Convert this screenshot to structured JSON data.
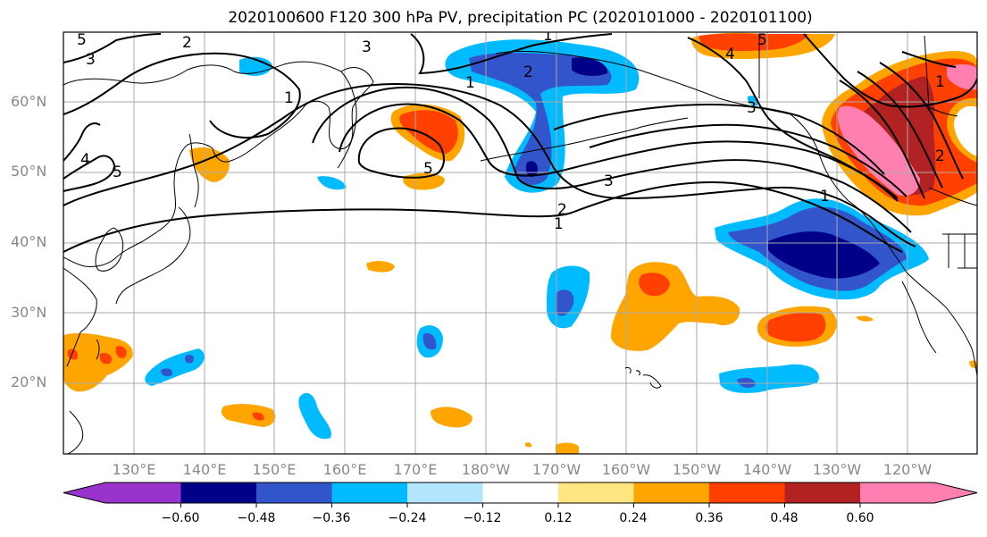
{
  "title": "2020100600 F120 300 hPa PV, precipitation PC (2020101000 - 2020101100)",
  "lat_labels": [
    "60°N",
    "50°N",
    "40°N",
    "30°N",
    "20°N"
  ],
  "lon_labels": [
    "130°E",
    "140°E",
    "150°E",
    "160°E",
    "170°E",
    "180°W",
    "170°W",
    "160°W",
    "150°W",
    "140°W",
    "130°W",
    "120°W"
  ],
  "contour_labels": [
    "5",
    "2",
    "3",
    "1",
    "4",
    "5",
    "3",
    "1",
    "2",
    "1",
    "4",
    "5",
    "5",
    "3",
    "2",
    "1",
    "1",
    "3",
    "1",
    "2"
  ],
  "colorbar": {
    "tick_labels": [
      "−0.60",
      "−0.48",
      "−0.36",
      "−0.24",
      "−0.12",
      "0.12",
      "0.24",
      "0.36",
      "0.48",
      "0.60"
    ],
    "colors": [
      "#9933cc",
      "#000088",
      "#3355cc",
      "#00bbff",
      "#b3e5ff",
      "#ffffff",
      "#ffe680",
      "#ffa500",
      "#ff4000",
      "#b22222",
      "#ff80b0"
    ]
  },
  "colors": {
    "gridline": "#aaaaaa",
    "contour": "#000000",
    "coastline": "#000000",
    "label_gray": "#888888"
  }
}
